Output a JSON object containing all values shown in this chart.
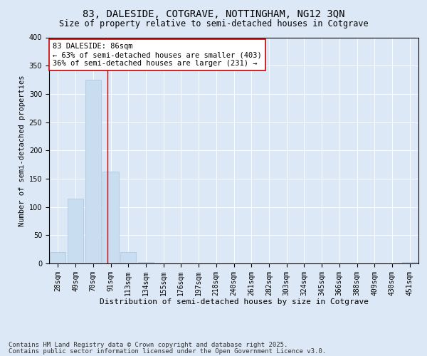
{
  "title1": "83, DALESIDE, COTGRAVE, NOTTINGHAM, NG12 3QN",
  "title2": "Size of property relative to semi-detached houses in Cotgrave",
  "xlabel": "Distribution of semi-detached houses by size in Cotgrave",
  "ylabel": "Number of semi-detached properties",
  "categories": [
    "28sqm",
    "49sqm",
    "70sqm",
    "91sqm",
    "113sqm",
    "134sqm",
    "155sqm",
    "176sqm",
    "197sqm",
    "218sqm",
    "240sqm",
    "261sqm",
    "282sqm",
    "303sqm",
    "324sqm",
    "345sqm",
    "366sqm",
    "388sqm",
    "409sqm",
    "430sqm",
    "451sqm"
  ],
  "values": [
    20,
    115,
    325,
    163,
    20,
    3,
    0,
    0,
    0,
    0,
    0,
    0,
    0,
    0,
    0,
    0,
    0,
    0,
    0,
    0,
    3
  ],
  "bar_color": "#c9ddf0",
  "bar_edge_color": "#a8c4e0",
  "vline_x": 2.82,
  "vline_color": "#cc0000",
  "annotation_text": "83 DALESIDE: 86sqm\n← 63% of semi-detached houses are smaller (403)\n36% of semi-detached houses are larger (231) →",
  "annotation_box_color": "#ffffff",
  "annotation_box_edge": "#cc0000",
  "ylim": [
    0,
    400
  ],
  "yticks": [
    0,
    50,
    100,
    150,
    200,
    250,
    300,
    350,
    400
  ],
  "background_color": "#dce8f5",
  "plot_background": "#dce8f5",
  "footer1": "Contains HM Land Registry data © Crown copyright and database right 2025.",
  "footer2": "Contains public sector information licensed under the Open Government Licence v3.0.",
  "title1_fontsize": 10,
  "title2_fontsize": 8.5,
  "xlabel_fontsize": 8,
  "ylabel_fontsize": 7.5,
  "tick_fontsize": 7,
  "footer_fontsize": 6.5,
  "annotation_fontsize": 7.5
}
